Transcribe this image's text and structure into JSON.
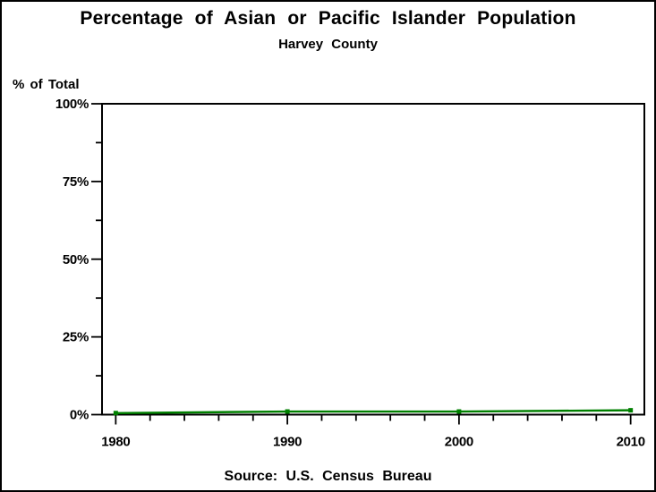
{
  "chart_data": {
    "type": "line",
    "title": "Percentage of Asian or Pacific Islander Population",
    "subtitle": "Harvey County",
    "ylabel": "% of Total",
    "xlabel": "",
    "footnote": "Source: U.S. Census Bureau",
    "x": [
      1980,
      1990,
      2000,
      2010
    ],
    "values": [
      0.5,
      1.0,
      1.0,
      1.4
    ],
    "xlim": [
      1979.2,
      2010.8
    ],
    "ylim": [
      0,
      100
    ],
    "x_ticks": {
      "major": [
        1980,
        1990,
        2000,
        2010
      ],
      "labels": [
        "1980",
        "1990",
        "2000",
        "2010"
      ],
      "minor_step": 2
    },
    "y_ticks": {
      "major": [
        0,
        25,
        50,
        75,
        100
      ],
      "labels": [
        "0%",
        "25%",
        "50%",
        "75%",
        "100%"
      ],
      "minor_step": 12.5
    },
    "grid": false,
    "legend": "none",
    "styles": {
      "line_color": "#008000",
      "marker": "filled-square",
      "axis_color": "#000000",
      "text_color": "#000000",
      "background": "#ffffff"
    }
  }
}
